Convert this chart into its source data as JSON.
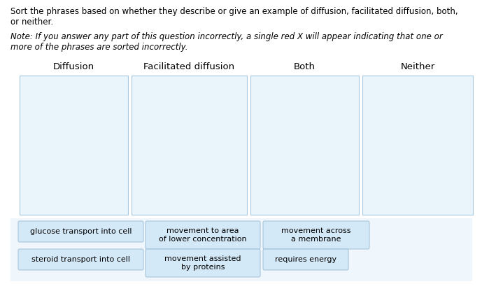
{
  "bg_color": "#ffffff",
  "title_text": "Sort the phrases based on whether they describe or give an example of diffusion, facilitated diffusion, both,\nor neither.",
  "note_text": "Note: If you answer any part of this question incorrectly, a single red X will appear indicating that one or\nmore of the phrases are sorted incorrectly.",
  "columns": [
    "Diffusion",
    "Facilitated diffusion",
    "Both",
    "Neither"
  ],
  "box_border_color": "#a8c8e0",
  "box_fill_color": "#eaf4fb",
  "chip_fill": "#d4e9f7",
  "chip_border": "#a0bfd8",
  "chip_fontsize": 8.0,
  "title_fontsize": 8.5,
  "note_fontsize": 8.5,
  "col_label_fontsize": 9.5
}
